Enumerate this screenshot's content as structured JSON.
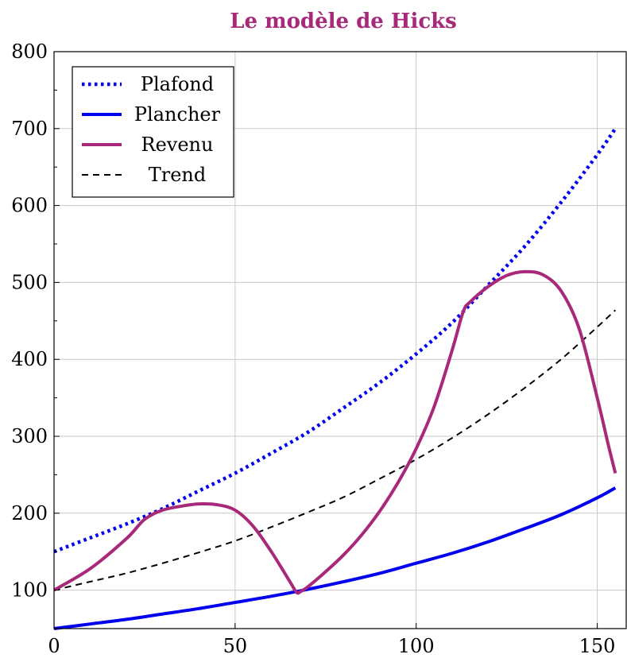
{
  "chart_data": {
    "type": "line",
    "title": "Le modèle de Hicks",
    "title_color": "#a8287a",
    "xlabel": "",
    "ylabel": "",
    "xlim": [
      0,
      158
    ],
    "ylim": [
      50,
      800
    ],
    "grid": true,
    "legend_position": "top-left",
    "x_ticks": [
      0,
      50,
      100,
      150
    ],
    "y_ticks": [
      100,
      200,
      300,
      400,
      500,
      600,
      700,
      800
    ],
    "series": [
      {
        "name": "Plafond",
        "color": "#0000ee",
        "style": "dotted",
        "x": [
          0,
          10,
          20,
          30,
          40,
          50,
          60,
          70,
          80,
          90,
          100,
          110,
          120,
          130,
          140,
          150,
          155
        ],
        "y": [
          150,
          168,
          186,
          206,
          229,
          252,
          278,
          305,
          337,
          370,
          407,
          448,
          497,
          547,
          604,
          666,
          700
        ]
      },
      {
        "name": "Plancher",
        "color": "#0000ee",
        "style": "solid",
        "x": [
          0,
          10,
          20,
          30,
          40,
          50,
          60,
          70,
          80,
          90,
          100,
          110,
          120,
          130,
          140,
          150,
          155
        ],
        "y": [
          50,
          56,
          62,
          69,
          76,
          84,
          92,
          101,
          111,
          122,
          135,
          148,
          163,
          180,
          198,
          220,
          233
        ]
      },
      {
        "name": "Revenu",
        "color": "#a8287a",
        "style": "solid",
        "x": [
          0,
          10,
          20,
          25,
          30,
          35,
          40,
          45,
          50,
          55,
          60,
          65,
          67,
          68,
          70,
          75,
          80,
          85,
          90,
          95,
          100,
          105,
          110,
          113,
          115,
          120,
          125,
          130,
          135,
          140,
          145,
          150,
          153,
          155
        ],
        "y": [
          100,
          128,
          167,
          192,
          204,
          209,
          212,
          211,
          204,
          183,
          150,
          112,
          97,
          98,
          104,
          124,
          146,
          172,
          203,
          240,
          284,
          339,
          413,
          462,
          475,
          495,
          509,
          514,
          510,
          489,
          440,
          350,
          290,
          252
        ]
      },
      {
        "name": "Trend",
        "color": "#000000",
        "style": "dashed",
        "x": [
          0,
          10,
          20,
          30,
          40,
          50,
          60,
          70,
          80,
          90,
          100,
          110,
          120,
          130,
          140,
          150,
          155
        ],
        "y": [
          100,
          111,
          122,
          135,
          149,
          164,
          182,
          201,
          221,
          245,
          270,
          298,
          329,
          363,
          400,
          442,
          464
        ]
      }
    ]
  }
}
